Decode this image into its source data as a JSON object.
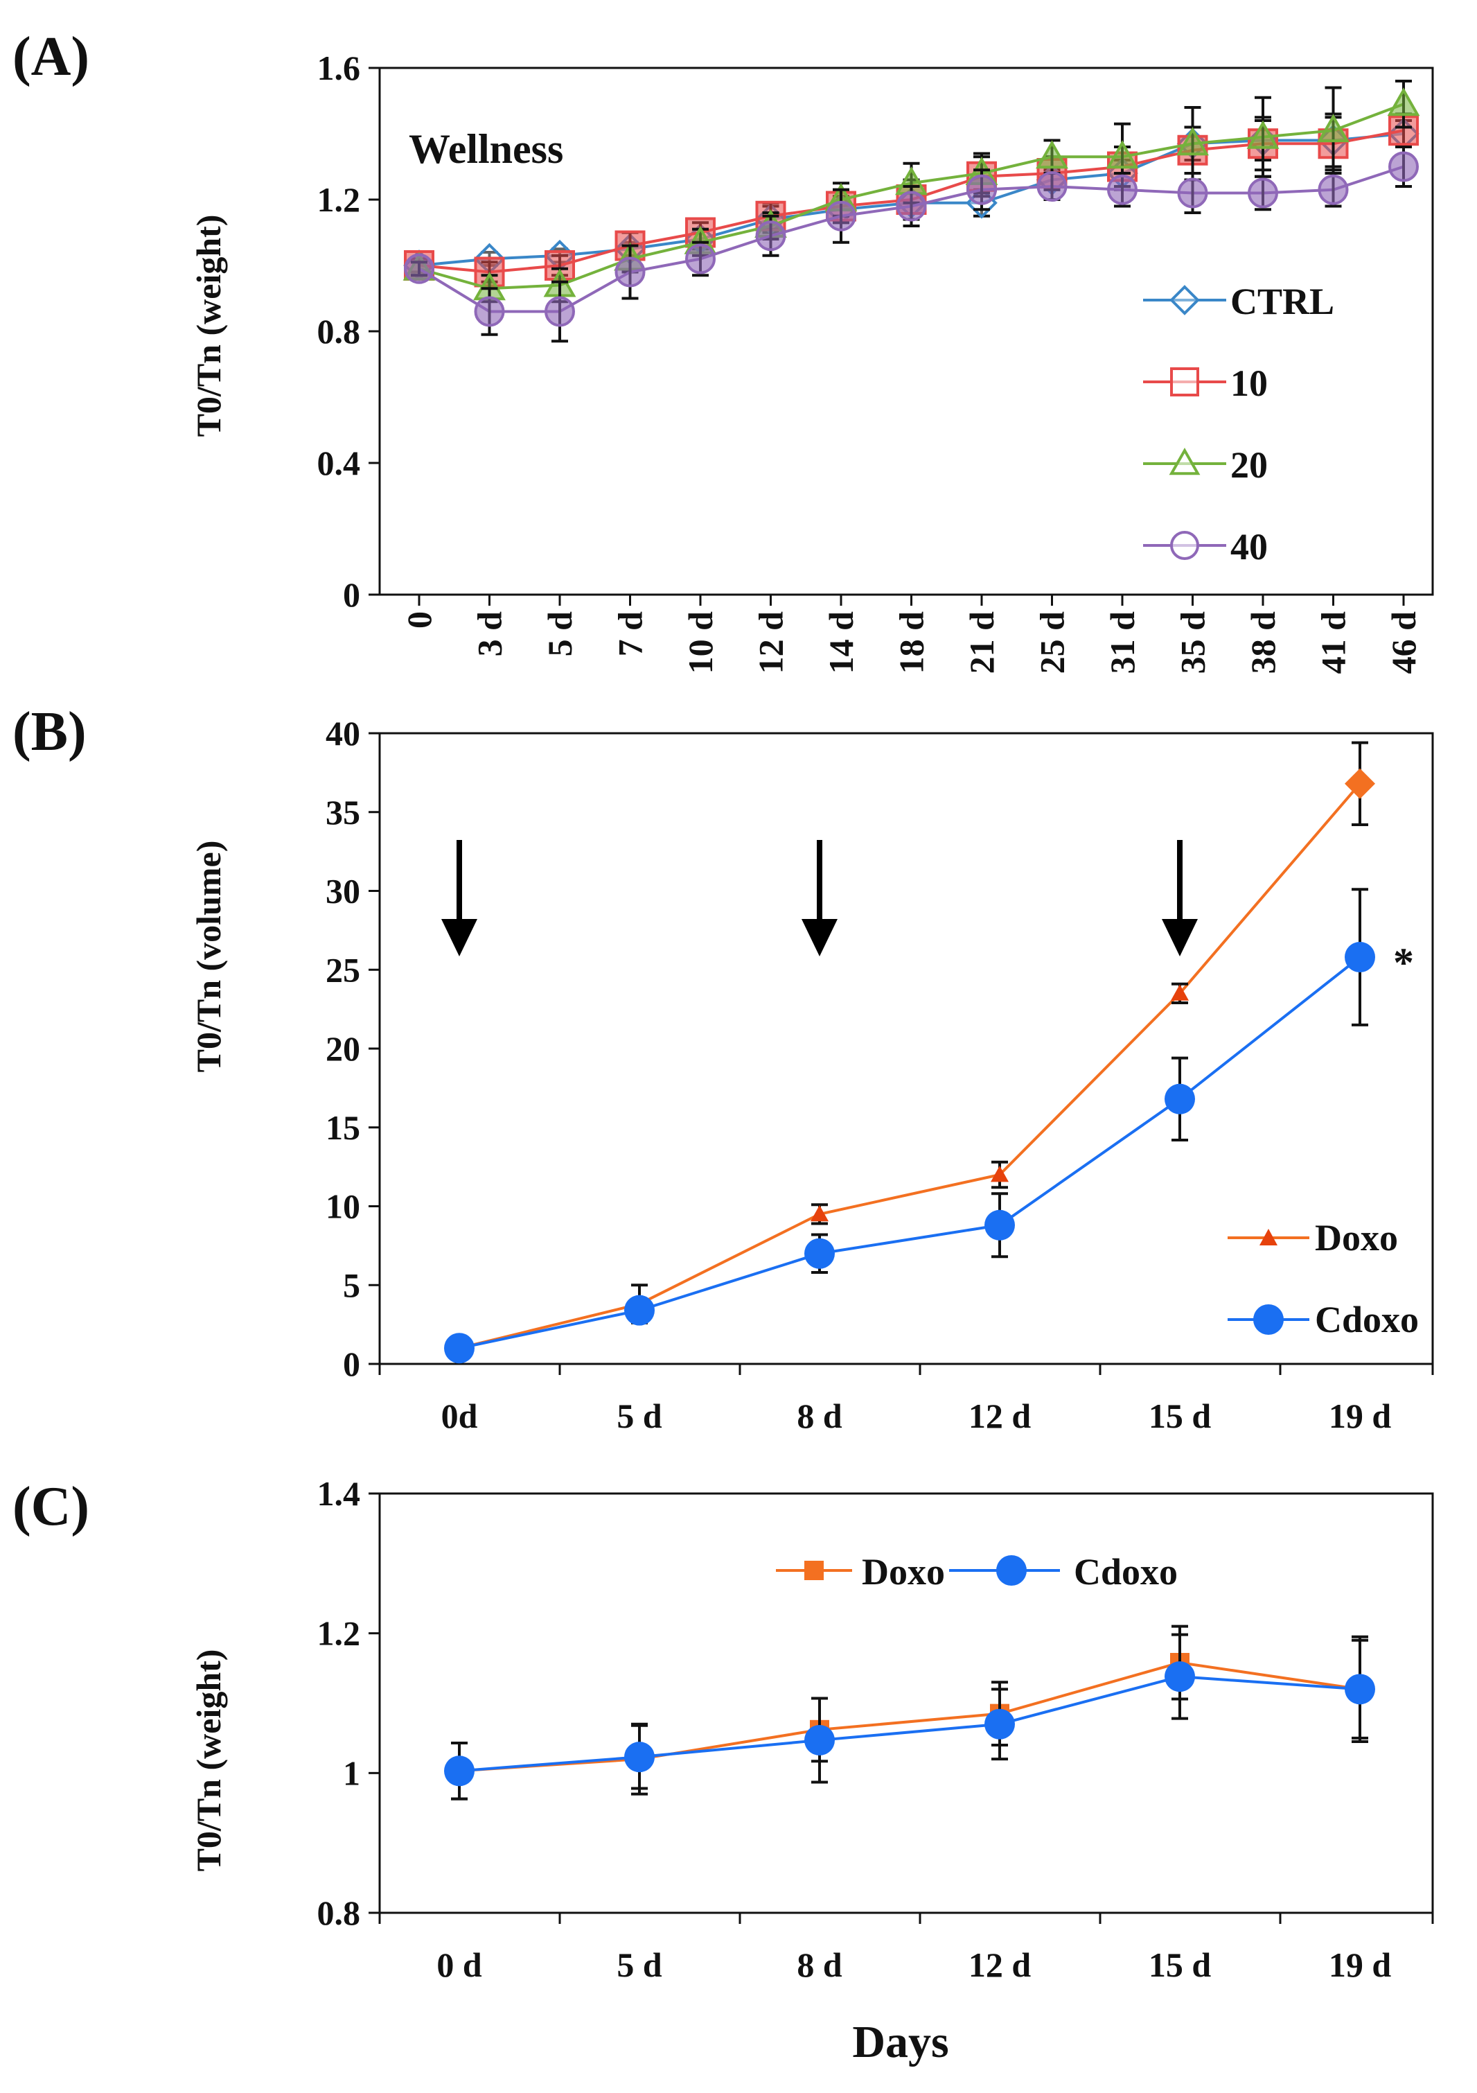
{
  "colors": {
    "ctrl": "#3a87c8",
    "c10": "#e84a4a",
    "c20": "#74b23c",
    "c40": "#8f68b8",
    "doxo": "#f37021",
    "doxo_marker": "#e6420c",
    "cdoxo": "#1a6ff2",
    "axis": "#111111"
  },
  "chart_data": [
    {
      "id": "A",
      "panel_label": "(A)",
      "type": "line",
      "inner_title": "Wellness",
      "ylabel": "T0/Tn (weight)",
      "xlabel": "",
      "ylim": [
        0,
        1.6
      ],
      "yticks": [
        0,
        0.4,
        0.8,
        1.2,
        1.6
      ],
      "ytick_labels": [
        "0",
        "0.4",
        "0.8",
        "1.2",
        "1.6"
      ],
      "categories": [
        "0",
        "3 d",
        "5 d",
        "7 d",
        "10 d",
        "12 d",
        "14 d",
        "18 d",
        "21 d",
        "25 d",
        "31 d",
        "35 d",
        "38 d",
        "41 d",
        "46 d"
      ],
      "legend_position": "right",
      "series": [
        {
          "name": "CTRL",
          "marker": "diamond",
          "color_key": "ctrl",
          "values": [
            1.0,
            1.02,
            1.03,
            1.05,
            1.08,
            1.14,
            1.17,
            1.19,
            1.19,
            1.26,
            1.28,
            1.37,
            1.38,
            1.38,
            1.4
          ],
          "errors": [
            0.02,
            0.02,
            0.02,
            0.02,
            0.03,
            0.04,
            0.04,
            0.05,
            0.04,
            0.03,
            0.04,
            0.05,
            0.06,
            0.08,
            0.04
          ]
        },
        {
          "name": "10",
          "marker": "square",
          "color_key": "c10",
          "values": [
            1.0,
            0.98,
            1.0,
            1.06,
            1.1,
            1.15,
            1.18,
            1.2,
            1.27,
            1.28,
            1.3,
            1.35,
            1.37,
            1.37,
            1.41
          ],
          "errors": [
            0.02,
            0.03,
            0.03,
            0.04,
            0.03,
            0.04,
            0.05,
            0.06,
            0.06,
            0.05,
            0.06,
            0.07,
            0.08,
            0.08,
            0.05
          ]
        },
        {
          "name": "20",
          "marker": "triangle",
          "color_key": "c20",
          "values": [
            0.99,
            0.93,
            0.94,
            1.02,
            1.07,
            1.12,
            1.2,
            1.25,
            1.28,
            1.33,
            1.33,
            1.37,
            1.39,
            1.41,
            1.49
          ],
          "errors": [
            0.02,
            0.04,
            0.05,
            0.04,
            0.04,
            0.04,
            0.05,
            0.06,
            0.06,
            0.05,
            0.1,
            0.11,
            0.12,
            0.13,
            0.07
          ]
        },
        {
          "name": "40",
          "marker": "circle",
          "color_key": "c40",
          "values": [
            0.99,
            0.86,
            0.86,
            0.98,
            1.02,
            1.09,
            1.15,
            1.18,
            1.23,
            1.24,
            1.23,
            1.22,
            1.22,
            1.23,
            1.3
          ],
          "errors": [
            0.02,
            0.07,
            0.09,
            0.08,
            0.05,
            0.06,
            0.08,
            0.06,
            0.06,
            0.04,
            0.05,
            0.06,
            0.05,
            0.05,
            0.06
          ]
        }
      ]
    },
    {
      "id": "B",
      "panel_label": "(B)",
      "type": "line",
      "ylabel": "T0/Tn (volume)",
      "xlabel": "",
      "ylim": [
        0,
        40
      ],
      "yticks": [
        0,
        5,
        10,
        15,
        20,
        25,
        30,
        35,
        40
      ],
      "ytick_labels": [
        "0",
        "5",
        "10",
        "15",
        "20",
        "25",
        "30",
        "35",
        "40"
      ],
      "categories": [
        "0d",
        "5 d",
        "8 d",
        "12 d",
        "15 d",
        "19 d"
      ],
      "legend_position": "bottom-right",
      "arrow_categories": [
        0,
        2,
        4
      ],
      "annotation": "*",
      "annotation_series": "Cdoxo",
      "series": [
        {
          "name": "Doxo",
          "marker": "triangle",
          "color_key": "doxo",
          "marker_color_key": "doxo_marker",
          "values": [
            1.0,
            3.8,
            9.5,
            12.0,
            23.5,
            36.8
          ],
          "errors": [
            0.2,
            1.2,
            0.6,
            0.8,
            0.6,
            2.6
          ]
        },
        {
          "name": "Cdoxo",
          "marker": "filled-circle",
          "color_key": "cdoxo",
          "marker_color_key": "cdoxo",
          "values": [
            1.0,
            3.4,
            7.0,
            8.8,
            16.8,
            25.8
          ],
          "errors": [
            0.2,
            0.6,
            1.2,
            2.0,
            2.6,
            4.3
          ]
        }
      ]
    },
    {
      "id": "C",
      "panel_label": "(C)",
      "type": "line",
      "ylabel": "T0/Tn (weight)",
      "xlabel": "Days",
      "ylim": [
        0.8,
        1.4
      ],
      "yticks": [
        0.8,
        1.0,
        1.2,
        1.4
      ],
      "ytick_labels": [
        "0.8",
        "1",
        "1.2",
        "1.4"
      ],
      "categories": [
        "0 d",
        "5 d",
        "8 d",
        "12 d",
        "15 d",
        "19 d"
      ],
      "legend_position": "top-center",
      "series": [
        {
          "name": "Doxo",
          "marker": "square",
          "color_key": "doxo",
          "marker_color_key": "doxo",
          "values": [
            1.003,
            1.02,
            1.062,
            1.085,
            1.158,
            1.12
          ],
          "errors": [
            0.04,
            0.05,
            0.045,
            0.045,
            0.052,
            0.07
          ]
        },
        {
          "name": "Cdoxo",
          "marker": "filled-circle",
          "color_key": "cdoxo",
          "marker_color_key": "cdoxo",
          "values": [
            1.003,
            1.023,
            1.047,
            1.07,
            1.138,
            1.12
          ],
          "errors": [
            0.04,
            0.045,
            0.06,
            0.05,
            0.06,
            0.075
          ]
        }
      ]
    }
  ]
}
